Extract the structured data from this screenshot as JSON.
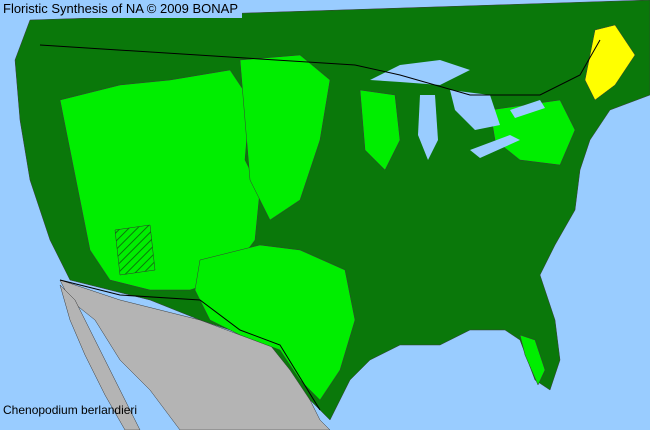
{
  "title": "Floristic Synthesis of NA © 2009 BONAP",
  "species": "Chenopodium berlandieri",
  "colors": {
    "ocean": "#99ccff",
    "present_county": "#0a780a",
    "native_state_no_county": "#00ee00",
    "mexico": "#b4b4b4",
    "yellow_status": "#ffff00",
    "county_border": "#3a3a3a"
  },
  "legend_meaning_shown": [
    "dark green",
    "bright green",
    "yellow",
    "hatched"
  ]
}
